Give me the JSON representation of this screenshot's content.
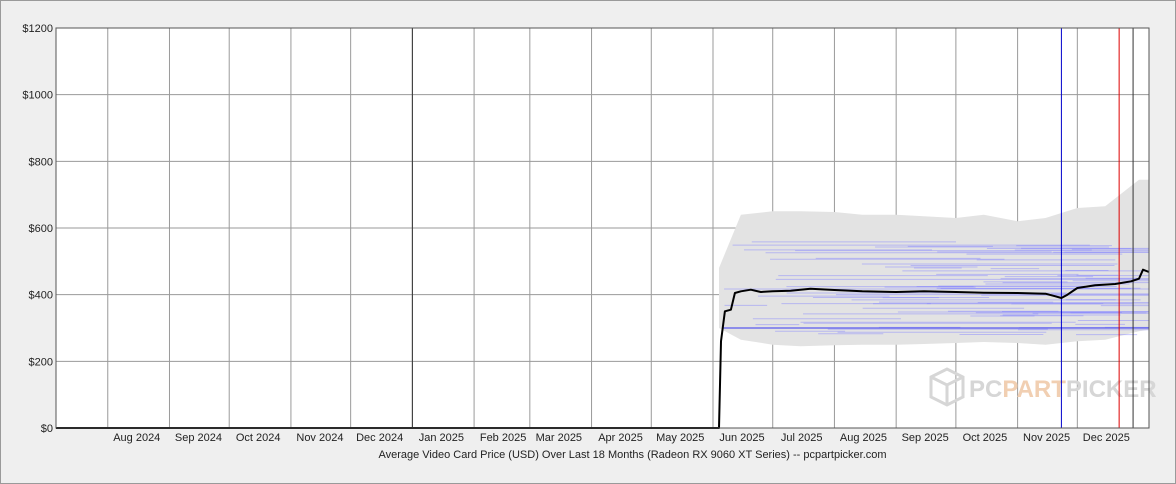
{
  "chart_data": {
    "type": "line",
    "title": "",
    "xlabel": "Average Video Card Price (USD) Over Last 18 Months (Radeon RX 9060 XT Series) -- pcpartpicker.com",
    "ylabel": "",
    "ylim": [
      0,
      1200
    ],
    "y_ticks": [
      0,
      200,
      400,
      600,
      800,
      1000,
      1200
    ],
    "y_tick_labels": [
      "$0",
      "$200",
      "$400",
      "$600",
      "$800",
      "$1000",
      "$1200"
    ],
    "x_range": [
      "2024-07-06",
      "2026-01-06"
    ],
    "x_tick_labels": [
      "Aug 2024",
      "Sep 2024",
      "Oct 2024",
      "Nov 2024",
      "Dec 2024",
      "Jan 2025",
      "Feb 2025",
      "Mar 2025",
      "Apr 2025",
      "May 2025",
      "Jun 2025",
      "Jul 2025",
      "Aug 2025",
      "Sep 2025",
      "Oct 2025",
      "Nov 2025",
      "Dec 2025"
    ],
    "x_tick_dates": [
      "2024-08-01",
      "2024-09-01",
      "2024-10-01",
      "2024-11-01",
      "2024-12-01",
      "2025-01-01",
      "2025-02-01",
      "2025-03-01",
      "2025-04-01",
      "2025-05-01",
      "2025-06-01",
      "2025-07-01",
      "2025-08-01",
      "2025-09-01",
      "2025-10-01",
      "2025-11-01",
      "2025-12-01"
    ],
    "grid": true,
    "series": [
      {
        "name": "",
        "color": "#000000",
        "x": [
          "2024-07-06",
          "2025-06-04",
          "2025-06-05",
          "2025-06-07",
          "2025-06-10",
          "2025-06-12",
          "2025-06-15",
          "2025-06-20",
          "2025-06-25",
          "2025-07-01",
          "2025-07-10",
          "2025-07-20",
          "2025-08-01",
          "2025-08-15",
          "2025-09-01",
          "2025-09-15",
          "2025-10-01",
          "2025-10-15",
          "2025-11-01",
          "2025-11-15",
          "2025-11-20",
          "2025-11-23",
          "2025-11-26",
          "2025-12-01",
          "2025-12-10",
          "2025-12-20",
          "2025-12-28",
          "2026-01-01",
          "2026-01-03",
          "2026-01-06"
        ],
        "y": [
          0,
          0,
          260,
          350,
          355,
          405,
          410,
          415,
          408,
          410,
          412,
          418,
          414,
          410,
          408,
          410,
          408,
          406,
          405,
          403,
          395,
          390,
          400,
          420,
          428,
          432,
          440,
          448,
          475,
          468
        ]
      }
    ],
    "range_band": {
      "color": "#e3e3e3",
      "x": [
        "2025-06-04",
        "2025-06-15",
        "2025-07-01",
        "2025-07-15",
        "2025-08-01",
        "2025-08-15",
        "2025-09-01",
        "2025-09-15",
        "2025-10-01",
        "2025-10-15",
        "2025-11-01",
        "2025-11-15",
        "2025-12-01",
        "2025-12-15",
        "2026-01-01",
        "2026-01-06"
      ],
      "low": [
        300,
        265,
        250,
        245,
        248,
        250,
        250,
        252,
        255,
        258,
        255,
        250,
        260,
        265,
        290,
        295
      ],
      "high": [
        480,
        640,
        650,
        650,
        648,
        640,
        640,
        635,
        630,
        640,
        620,
        630,
        660,
        665,
        745,
        745
      ]
    },
    "markers": [
      {
        "date": "2025-01-01",
        "color": "#333333"
      },
      {
        "date": "2025-11-23",
        "color": "#0000cc"
      },
      {
        "date": "2025-12-22",
        "color": "#dd0000"
      },
      {
        "date": "2025-12-29",
        "color": "#333333"
      }
    ],
    "price_lines": {
      "color": "#8080ff",
      "min": 280,
      "max": 560,
      "start": "2025-06-06"
    },
    "watermark": {
      "prefix": "PC",
      "accent": "PART",
      "suffix": "PICKER",
      "color": "#d6d6d6",
      "accent_color": "#f1cfb2"
    }
  }
}
